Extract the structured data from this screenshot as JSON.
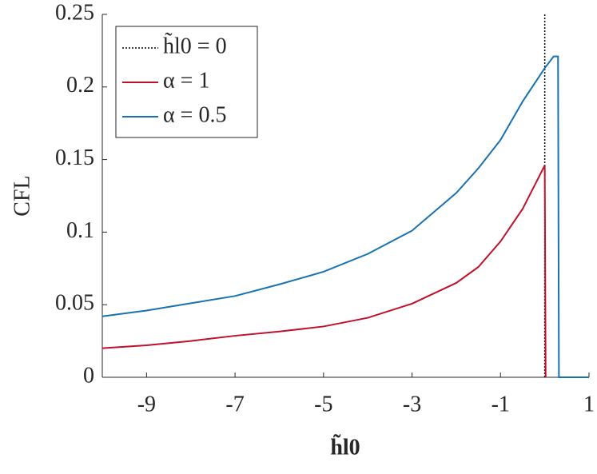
{
  "chart_data": {
    "type": "line",
    "x_label": "h̃l0",
    "y_label": "CFL",
    "xlim": [
      -10,
      1
    ],
    "xticks": [
      -9,
      -7,
      -5,
      -3,
      -1,
      1
    ],
    "ylim": [
      0,
      0.25
    ],
    "yticks": [
      0,
      0.05,
      0.1,
      0.15,
      0.2,
      0.25
    ],
    "legend": "upper left",
    "series": [
      {
        "name": "h̃l0 = 0",
        "color": "#000000",
        "dash": "dotted",
        "x": [
          0,
          0
        ],
        "values": [
          0,
          0.25
        ]
      },
      {
        "name": "α = 1",
        "color": "#c0112b",
        "x": [
          -10,
          -9,
          -8,
          -7,
          -6,
          -5,
          -4,
          -3,
          -2,
          -1.5,
          -1,
          -0.5,
          -0.2,
          0,
          0.02
        ],
        "values": [
          0.02,
          0.022,
          0.025,
          0.0286,
          0.0315,
          0.035,
          0.041,
          0.0507,
          0.065,
          0.076,
          0.0936,
          0.116,
          0.134,
          0.146,
          0
        ]
      },
      {
        "name": "α = 0.5",
        "color": "#1672b0",
        "x": [
          -10,
          -9,
          -8,
          -7,
          -6,
          -5,
          -4,
          -3,
          -2,
          -1.5,
          -1,
          -0.5,
          0,
          0.2,
          0.3,
          0.32,
          1
        ],
        "values": [
          0.042,
          0.046,
          0.051,
          0.056,
          0.064,
          0.0727,
          0.085,
          0.101,
          0.127,
          0.144,
          0.1635,
          0.19,
          0.213,
          0.221,
          0.221,
          0,
          0
        ]
      }
    ]
  }
}
